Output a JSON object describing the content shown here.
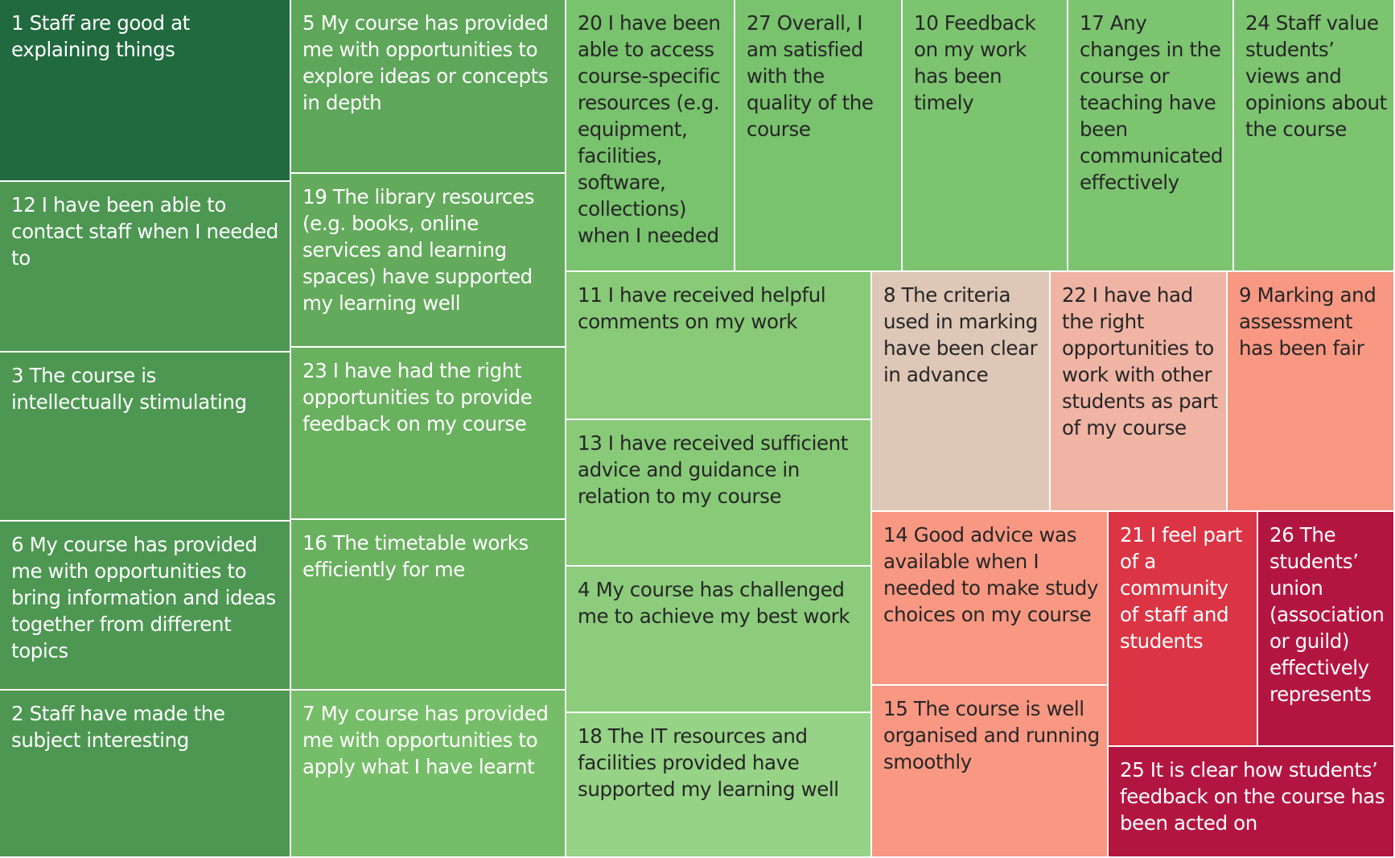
{
  "chart_data": {
    "type": "treemap",
    "title": "",
    "color_scale": {
      "type": "diverging",
      "negative": "#b31541",
      "neutral": "#ddc8b8",
      "positive": "#1f6b3f"
    },
    "tiles": [
      {
        "label": "1 Staff are good at explaining things",
        "color": "#216a3f",
        "dark_text": false
      },
      {
        "label": "12 I have been able to contact staff when I needed to",
        "color": "#4d9752",
        "dark_text": false
      },
      {
        "label": "3 The course is intellectually stimulating",
        "color": "#4d9752",
        "dark_text": false
      },
      {
        "label": "6 My course has provided me with opportunities to bring information and ideas together from different topics",
        "color": "#4d9752",
        "dark_text": false
      },
      {
        "label": "2 Staff have made the subject interesting",
        "color": "#4d9752",
        "dark_text": false
      },
      {
        "label": "5 My course has provided me with opportunities to explore ideas or concepts in depth",
        "color": "#5ea65a",
        "dark_text": false
      },
      {
        "label": "19 The library resources (e.g. books, online services and learning spaces) have supported my learning well",
        "color": "#63aa5c",
        "dark_text": false
      },
      {
        "label": "23 I have had the right opportunities to provide feedback on my course",
        "color": "#69b05f",
        "dark_text": false
      },
      {
        "label": "16 The timetable works efficiently for me",
        "color": "#69b05f",
        "dark_text": false
      },
      {
        "label": "7 My course has provided me with opportunities to apply what I have learnt",
        "color": "#76bd69",
        "dark_text": false
      },
      {
        "label": "20 I have been able to access course-specific resources (e.g. equipment, facilities, software, collections) when I needed",
        "color": "#79c26e",
        "dark_text": true
      },
      {
        "label": "27 Overall, I am satisfied with the quality of the course",
        "color": "#79c26e",
        "dark_text": true
      },
      {
        "label": "10 Feedback on my work has been timely",
        "color": "#7cc470",
        "dark_text": true
      },
      {
        "label": "17 Any changes in the course or teaching have been communicated effectively",
        "color": "#7cc470",
        "dark_text": true
      },
      {
        "label": "24 Staff value students’ views and opinions about the course",
        "color": "#7cc470",
        "dark_text": true
      },
      {
        "label": "11 I have received helpful comments on my work",
        "color": "#88ca78",
        "dark_text": true
      },
      {
        "label": "13 I have received sufficient advice and guidance in relation to my course",
        "color": "#88ca78",
        "dark_text": true
      },
      {
        "label": "4 My course has challenged me to achieve my best work",
        "color": "#8ccc7c",
        "dark_text": true
      },
      {
        "label": "18 The IT resources and facilities provided have supported my learning well",
        "color": "#96d386",
        "dark_text": true
      },
      {
        "label": "8 The criteria used in marking have been clear in advance",
        "color": "#dec7b7",
        "dark_text": true
      },
      {
        "label": "22 I have had the right opportunities to work with other students as part of my course",
        "color": "#efb4a4",
        "dark_text": true
      },
      {
        "label": "9 Marking and assessment has been fair",
        "color": "#f89883",
        "dark_text": true
      },
      {
        "label": "14 Good advice was available when I needed to make study choices on my course",
        "color": "#f89883",
        "dark_text": true
      },
      {
        "label": "15 The course is well organised and running smoothly",
        "color": "#f89883",
        "dark_text": true
      },
      {
        "label": "21 I feel part of a community of staff and students",
        "color": "#db3545",
        "dark_text": false
      },
      {
        "label": "26 The students’ union (association or guild) effectively represents",
        "color": "#b31541",
        "dark_text": false
      },
      {
        "label": "25 It is clear how students’ feedback on the course has been acted on",
        "color": "#b31541",
        "dark_text": false
      }
    ]
  }
}
